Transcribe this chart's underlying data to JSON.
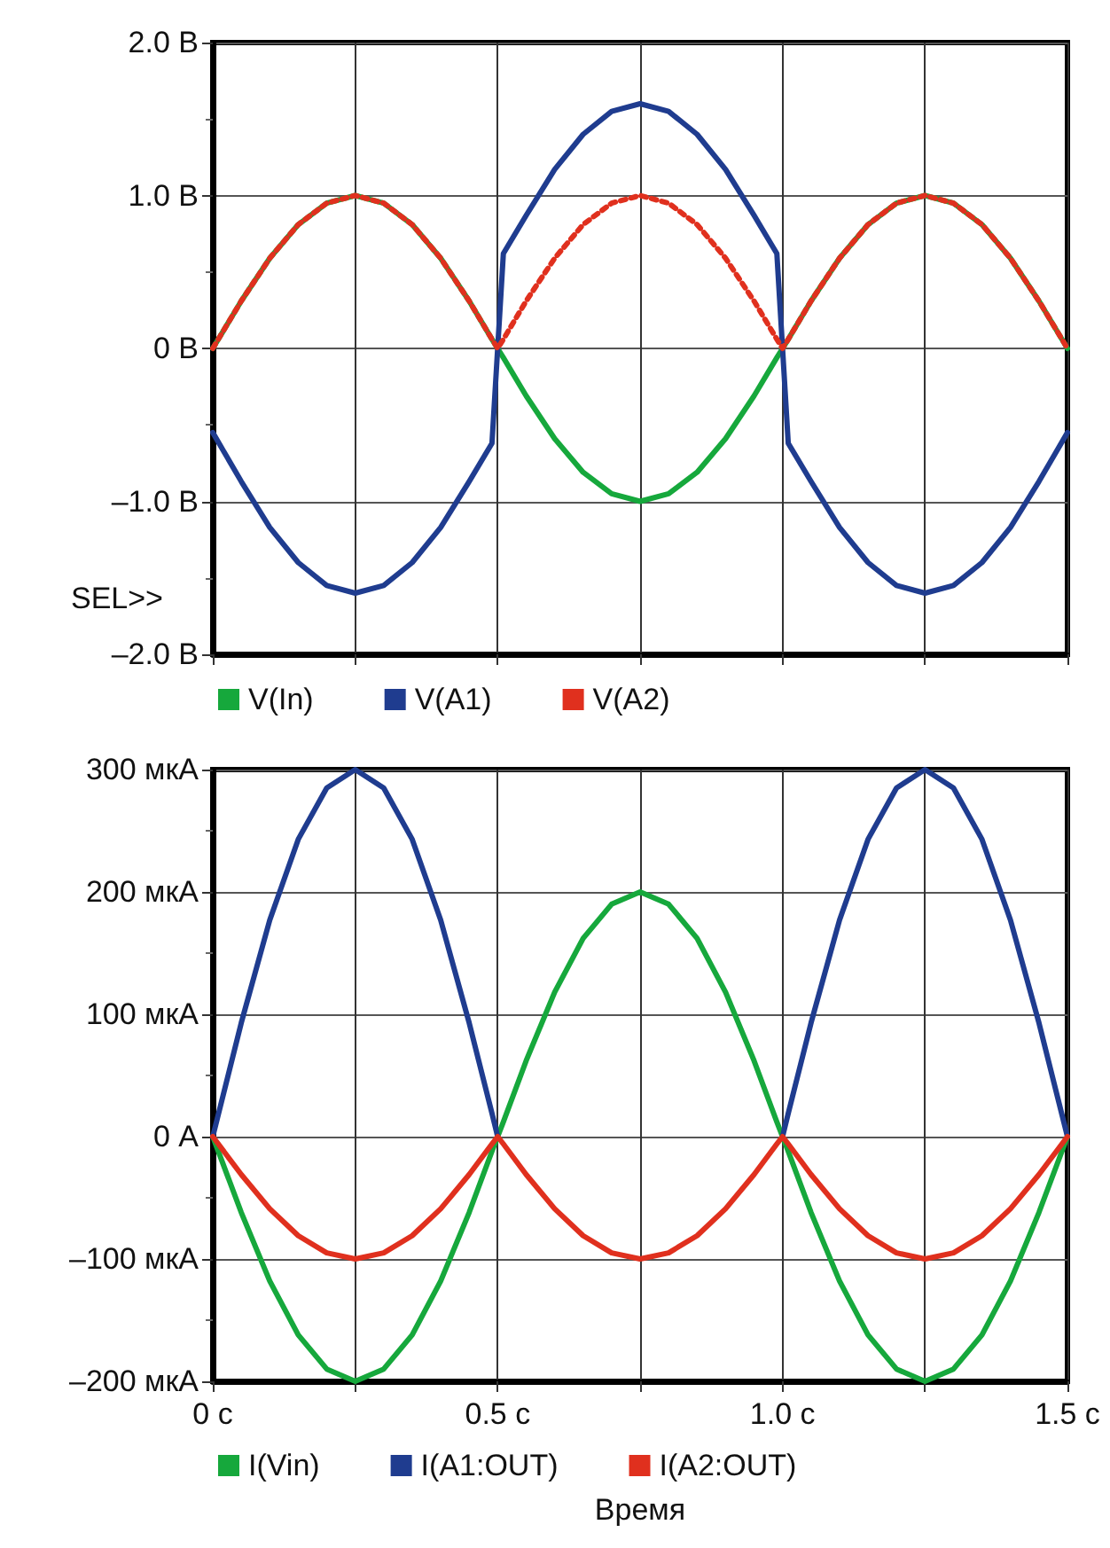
{
  "chart_data": [
    {
      "type": "line",
      "x": [
        0,
        0.05,
        0.1,
        0.15,
        0.2,
        0.25,
        0.3,
        0.35,
        0.4,
        0.45,
        0.49,
        0.5,
        0.51,
        0.55,
        0.6,
        0.65,
        0.7,
        0.75,
        0.8,
        0.85,
        0.9,
        0.95,
        0.99,
        1,
        1.01,
        1.05,
        1.1,
        1.15,
        1.2,
        1.25,
        1.3,
        1.35,
        1.4,
        1.45,
        1.5
      ],
      "series": [
        {
          "name": "V(In)",
          "color": "#16a83c",
          "line_style": "solid",
          "values": [
            0,
            0.31,
            0.59,
            0.81,
            0.95,
            1,
            0.95,
            0.81,
            0.59,
            0.31,
            0.06,
            0,
            -0.06,
            -0.31,
            -0.59,
            -0.81,
            -0.95,
            -1,
            -0.95,
            -0.81,
            -0.59,
            -0.31,
            -0.06,
            0,
            0.06,
            0.31,
            0.59,
            0.81,
            0.95,
            1,
            0.95,
            0.81,
            0.59,
            0.31,
            0
          ]
        },
        {
          "name": "V(A1)",
          "color": "#1f3c8f",
          "line_style": "solid",
          "values": [
            -0.55,
            -0.87,
            -1.17,
            -1.4,
            -1.55,
            -1.6,
            -1.55,
            -1.4,
            -1.17,
            -0.87,
            -0.62,
            0,
            0.62,
            0.87,
            1.17,
            1.4,
            1.55,
            1.6,
            1.55,
            1.4,
            1.17,
            0.87,
            0.62,
            0,
            -0.62,
            -0.87,
            -1.17,
            -1.4,
            -1.55,
            -1.6,
            -1.55,
            -1.4,
            -1.17,
            -0.87,
            -0.55
          ]
        },
        {
          "name": "V(A2)",
          "color": "#e0301e",
          "line_style": "dotted",
          "values": [
            0,
            0.31,
            0.59,
            0.81,
            0.95,
            1,
            0.95,
            0.81,
            0.59,
            0.31,
            0.06,
            0,
            0.06,
            0.31,
            0.59,
            0.81,
            0.95,
            1,
            0.95,
            0.81,
            0.59,
            0.31,
            0.06,
            0,
            0.06,
            0.31,
            0.59,
            0.81,
            0.95,
            1,
            0.95,
            0.81,
            0.59,
            0.31,
            0
          ]
        }
      ],
      "xlim": [
        0,
        1.5
      ],
      "xticks": [
        0,
        0.25,
        0.5,
        0.75,
        1,
        1.25,
        1.5
      ],
      "ylim": [
        -2,
        2
      ],
      "yticks": [
        {
          "value": -2,
          "label": "–2.0 В"
        },
        {
          "value": -1,
          "label": "–1.0 В"
        },
        {
          "value": 0,
          "label": "0 В"
        },
        {
          "value": 1,
          "label": "1.0 В"
        },
        {
          "value": 2,
          "label": "2.0 В"
        }
      ],
      "tick_labels": "y",
      "grid": true,
      "legend": "bottom left",
      "marker": "none",
      "annotations": [
        "SEL>>"
      ]
    },
    {
      "type": "line",
      "x": [
        0,
        0.05,
        0.1,
        0.15,
        0.2,
        0.25,
        0.3,
        0.35,
        0.4,
        0.45,
        0.49,
        0.5,
        0.51,
        0.55,
        0.6,
        0.65,
        0.7,
        0.75,
        0.8,
        0.85,
        0.9,
        0.95,
        0.99,
        1,
        1.01,
        1.05,
        1.1,
        1.15,
        1.2,
        1.25,
        1.3,
        1.35,
        1.4,
        1.45,
        1.5
      ],
      "series": [
        {
          "name": "I(Vin)",
          "color": "#16a83c",
          "values": [
            0,
            -62,
            -118,
            -162,
            -190,
            -200,
            -190,
            -162,
            -118,
            -62,
            -12,
            0,
            12,
            62,
            118,
            162,
            190,
            200,
            190,
            162,
            118,
            62,
            12,
            0,
            -12,
            -62,
            -118,
            -162,
            -190,
            -200,
            -190,
            -162,
            -118,
            -62,
            0
          ]
        },
        {
          "name": "I(A1:OUT)",
          "color": "#1f3c8f",
          "values": [
            0,
            93,
            177,
            243,
            285,
            300,
            285,
            243,
            177,
            93,
            19,
            0,
            null,
            null,
            null,
            null,
            null,
            null,
            null,
            null,
            null,
            null,
            null,
            0,
            19,
            93,
            177,
            243,
            285,
            300,
            285,
            243,
            177,
            93,
            0
          ]
        },
        {
          "name": "I(A2:OUT)",
          "color": "#e0301e",
          "values": [
            0,
            -31,
            -59,
            -81,
            -95,
            -100,
            -95,
            -81,
            -59,
            -31,
            -6,
            0,
            -6,
            -31,
            -59,
            -81,
            -95,
            -100,
            -95,
            -81,
            -59,
            -31,
            -6,
            0,
            -6,
            -31,
            -59,
            -81,
            -95,
            -100,
            -95,
            -81,
            -59,
            -31,
            0
          ]
        }
      ],
      "xlim": [
        0,
        1.5
      ],
      "xticks": [
        {
          "value": 0,
          "label": "0 c"
        },
        {
          "value": 0.25,
          "label": null
        },
        {
          "value": 0.5,
          "label": "0.5 c"
        },
        {
          "value": 0.75,
          "label": null
        },
        {
          "value": 1,
          "label": "1.0 c"
        },
        {
          "value": 1.25,
          "label": null
        },
        {
          "value": 1.5,
          "label": "1.5 c"
        }
      ],
      "ylim": [
        -200,
        300
      ],
      "yticks": [
        {
          "value": -200,
          "label": "–200 мкА"
        },
        {
          "value": -100,
          "label": "–100 мкА"
        },
        {
          "value": 0,
          "label": "0 А"
        },
        {
          "value": 100,
          "label": "100 мкА"
        },
        {
          "value": 200,
          "label": "200 мкА"
        },
        {
          "value": 300,
          "label": "300 мкА"
        }
      ],
      "xlabel": "Время",
      "grid": true,
      "legend": "bottom left",
      "marker": "none"
    }
  ]
}
